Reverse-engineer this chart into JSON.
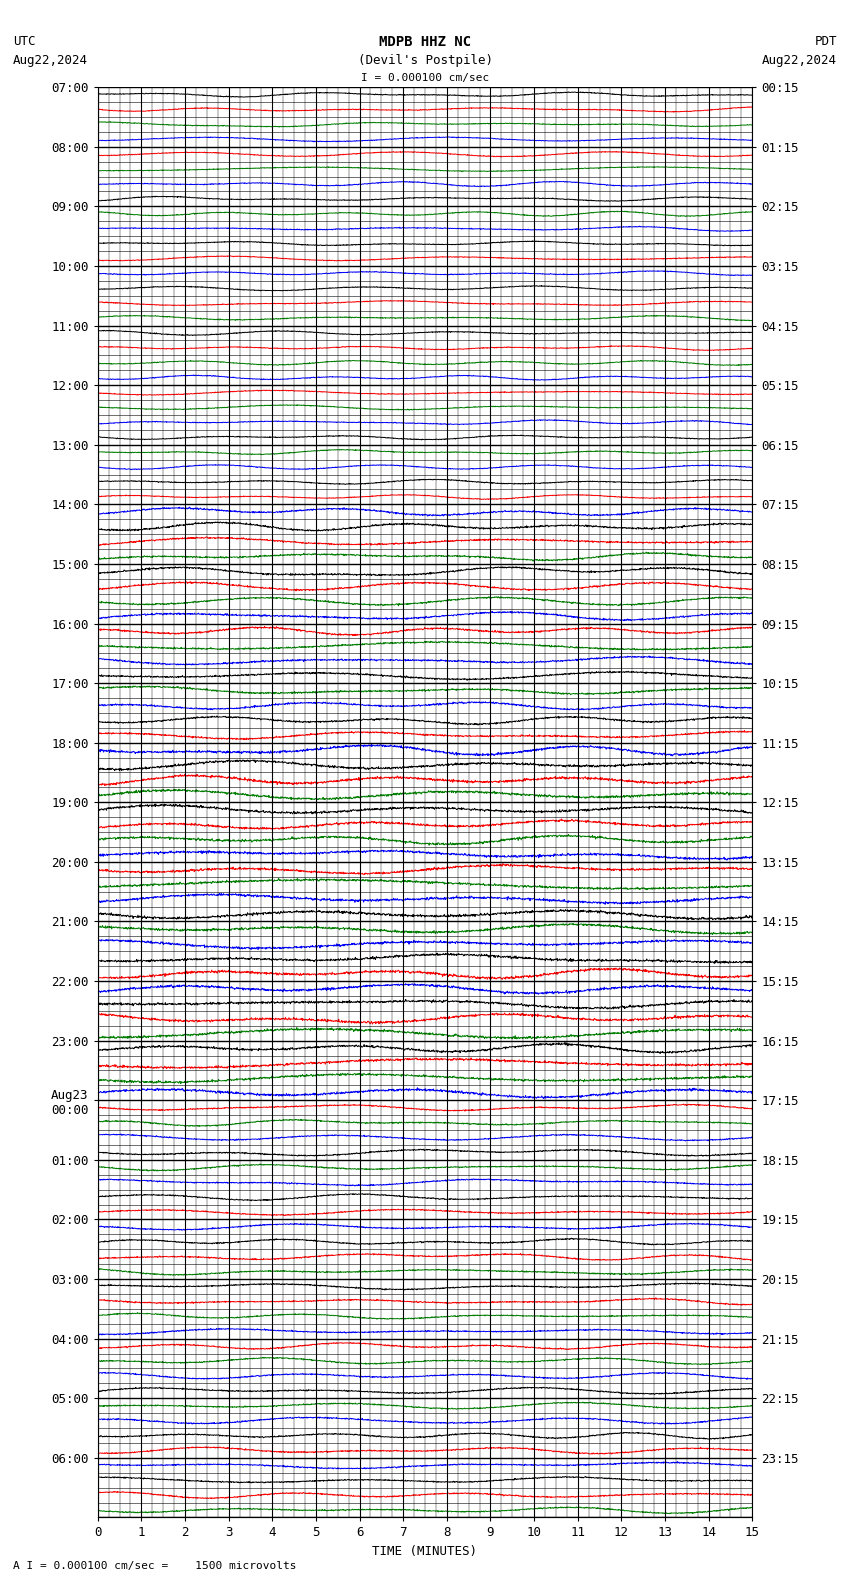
{
  "title_center": "MDPB HHZ NC",
  "title_sub": "(Devil's Postpile)",
  "title_left": "UTC",
  "title_left2": "Aug22,2024",
  "title_right": "PDT",
  "title_right2": "Aug22,2024",
  "scale_label": "I = 0.000100 cm/sec",
  "bottom_label": "A I = 0.000100 cm/sec =    1500 microvolts",
  "xlabel": "TIME (MINUTES)",
  "left_times": [
    "07:00",
    "08:00",
    "09:00",
    "10:00",
    "11:00",
    "12:00",
    "13:00",
    "14:00",
    "15:00",
    "16:00",
    "17:00",
    "18:00",
    "19:00",
    "20:00",
    "21:00",
    "22:00",
    "23:00",
    "Aug23\n00:00",
    "01:00",
    "02:00",
    "03:00",
    "04:00",
    "05:00",
    "06:00"
  ],
  "right_times": [
    "00:15",
    "01:15",
    "02:15",
    "03:15",
    "04:15",
    "05:15",
    "06:15",
    "07:15",
    "08:15",
    "09:15",
    "10:15",
    "11:15",
    "12:15",
    "13:15",
    "14:15",
    "15:15",
    "16:15",
    "17:15",
    "18:15",
    "19:15",
    "20:15",
    "21:15",
    "22:15",
    "23:15"
  ],
  "n_rows": 24,
  "n_subrows": 4,
  "n_minutes": 15,
  "bg_color": "#ffffff",
  "grid_color": "#000000",
  "sub_grid_color": "#000000",
  "colors": [
    "black",
    "red",
    "green",
    "blue"
  ],
  "line_width": 0.7,
  "font_size": 9,
  "amp_scale_early": 0.42,
  "amp_scale_late": 0.85
}
